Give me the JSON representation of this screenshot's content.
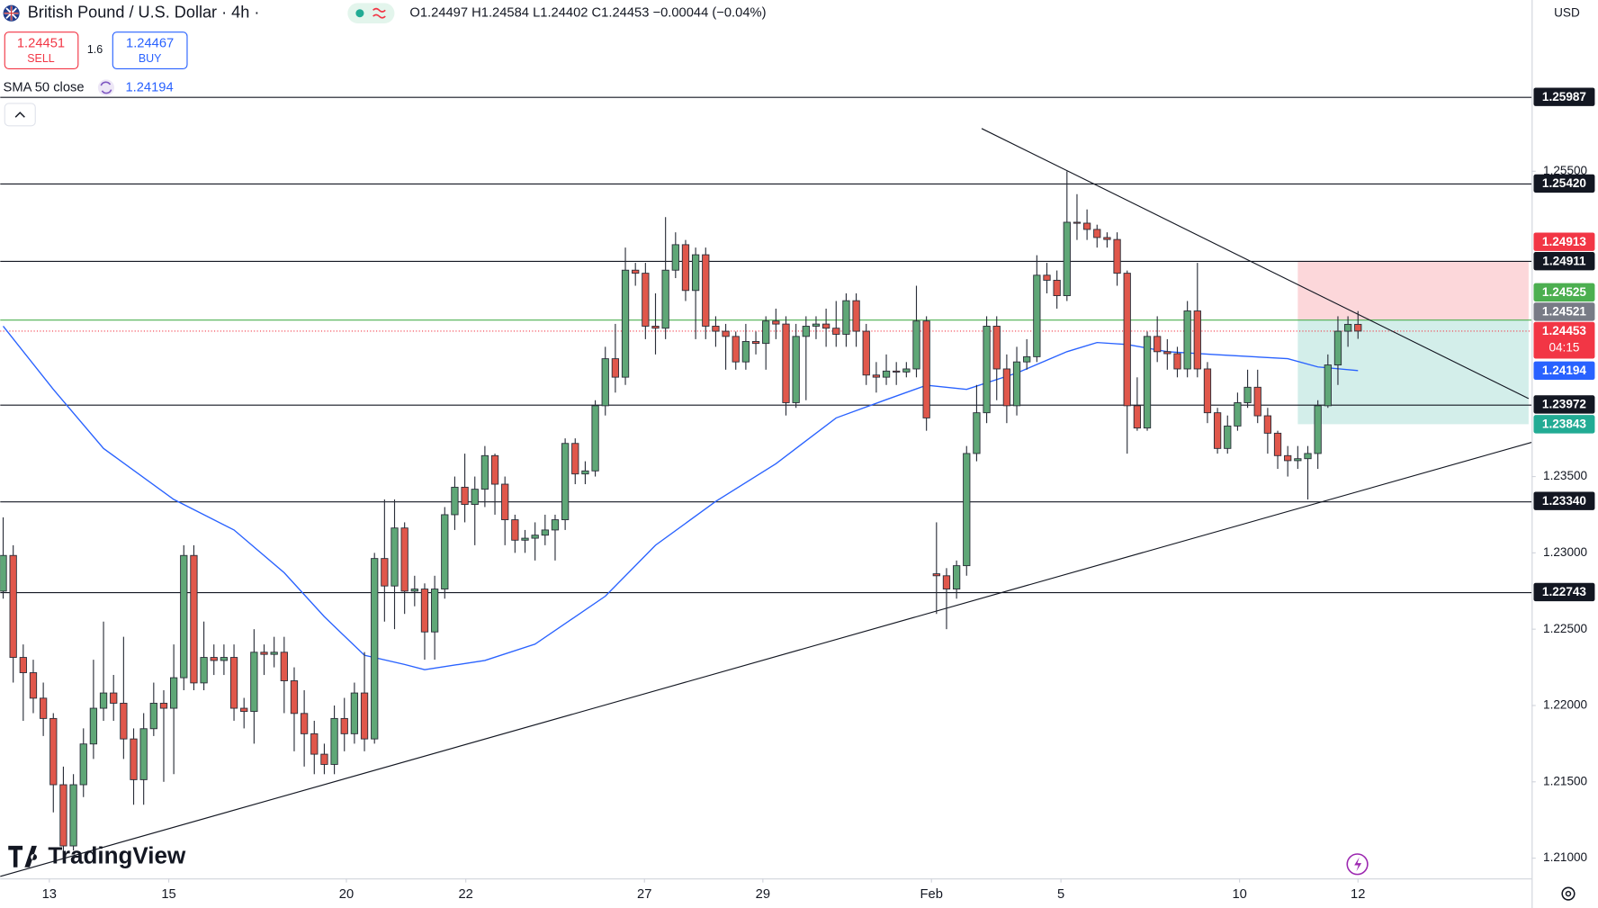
{
  "chart_data": {
    "type": "candlestick",
    "title": "British Pound / U.S. Dollar · 4h ·",
    "ohlc_text": "O1.24497 H1.24584 L1.24402 C1.24453 −0.00044 (−0.04%)",
    "currency": "USD",
    "logo": "TradingView",
    "countdown": "04:15",
    "trade": {
      "sell_price": 1.24451,
      "sell": "SELL",
      "spread": 1.6,
      "buy_price": 1.24467,
      "buy": "BUY"
    },
    "up_color": "#5fa777",
    "down_color": "#e0574b",
    "open": [
      1.22749,
      1.22983,
      1.22315,
      1.22215,
      1.22048,
      1.21915,
      1.21481,
      1.2108,
      1.21481,
      1.21748,
      1.21982,
      1.22082,
      1.22015,
      1.21781,
      1.21514,
      1.21848,
      1.22015,
      1.21982,
      1.22182,
      1.22983,
      1.22148,
      1.22315,
      1.22295,
      1.22315,
      1.21982,
      1.21961,
      1.22349,
      1.22335,
      1.22349,
      1.22162,
      1.21948,
      1.21815,
      1.21681,
      1.21614,
      1.21915,
      1.21815,
      1.22082,
      1.21781,
      1.22963,
      1.22783,
      1.23163,
      1.22749,
      1.22763,
      1.22482,
      1.22763,
      1.2325,
      1.2343,
      1.23317,
      1.23417,
      1.23637,
      1.2345,
      1.23217,
      1.23083,
      1.23096,
      1.23116,
      1.2315,
      1.23217,
      1.23717,
      1.23517,
      1.23537,
      1.23964,
      1.24272,
      1.24151,
      1.24852,
      1.24832,
      1.24485,
      1.24472,
      1.24852,
      1.25019,
      1.24719,
      1.24953,
      1.24485,
      1.24452,
      1.24418,
      1.24251,
      1.24385,
      1.24372,
      1.24519,
      1.24499,
      1.23984,
      1.24418,
      1.24485,
      1.24499,
      1.24472,
      1.24432,
      1.24652,
      1.24452,
      1.24165,
      1.24151,
      1.24191,
      1.24185,
      1.24205,
      1.24519,
      1.22863,
      1.2285,
      1.22763,
      1.22916,
      1.23651,
      1.23918,
      1.24485,
      1.24205,
      1.23964,
      1.24251,
      1.24285,
      1.24819,
      1.24786,
      1.24685,
      1.25166,
      1.2516,
      1.25119,
      1.25066,
      1.25053,
      1.24832,
      1.23964,
      1.23818,
      1.24418,
      1.24318,
      1.24305,
      1.24205,
      1.24585,
      1.24205,
      1.23918,
      1.23684,
      1.23831,
      1.23984,
      1.24085,
      1.23898,
      1.23784,
      1.23637,
      1.23604,
      1.23617,
      1.23651,
      1.23964,
      1.24231,
      1.24452,
      1.24497
    ],
    "high": [
      1.23233,
      1.2305,
      1.224,
      1.223,
      1.2215,
      1.2195,
      1.216,
      1.2155,
      1.2185,
      1.223,
      1.2255,
      1.222,
      1.2245,
      1.2185,
      1.2195,
      1.2215,
      1.221,
      1.224,
      1.2305,
      1.2305,
      1.2255,
      1.224,
      1.224,
      1.224,
      1.2205,
      1.225,
      1.224,
      1.2245,
      1.2245,
      1.2225,
      1.221,
      1.219,
      1.2175,
      1.22,
      1.2205,
      1.2215,
      1.2235,
      1.23,
      1.2335,
      1.2335,
      1.232,
      1.2285,
      1.228,
      1.2285,
      1.233,
      1.235,
      1.2365,
      1.235,
      1.237,
      1.2365,
      1.235,
      1.2325,
      1.2315,
      1.232,
      1.2325,
      1.2325,
      1.2375,
      1.2375,
      1.236,
      1.24,
      1.2435,
      1.245,
      1.25,
      1.249,
      1.249,
      1.247,
      1.252,
      1.251,
      1.2505,
      1.25,
      1.25,
      1.2455,
      1.245,
      1.2445,
      1.245,
      1.2445,
      1.2455,
      1.246,
      1.2455,
      1.245,
      1.2455,
      1.2455,
      1.246,
      1.2465,
      1.247,
      1.247,
      1.245,
      1.2425,
      1.243,
      1.2425,
      1.2425,
      1.2475,
      1.2455,
      1.232,
      1.229,
      1.2295,
      1.237,
      1.241,
      1.2455,
      1.2455,
      1.243,
      1.2435,
      1.244,
      1.2495,
      1.249,
      1.2485,
      1.255,
      1.2535,
      1.2525,
      1.2515,
      1.251,
      1.251,
      1.2485,
      1.2415,
      1.2445,
      1.2455,
      1.244,
      1.2435,
      1.2465,
      1.249,
      1.2425,
      1.2395,
      1.239,
      1.2405,
      1.242,
      1.242,
      1.2395,
      1.238,
      1.237,
      1.237,
      1.237,
      1.24,
      1.243,
      1.2455,
      1.2455,
      1.24584
    ],
    "low": [
      1.227,
      1.2215,
      1.219,
      1.2195,
      1.218,
      1.213,
      1.21,
      1.2105,
      1.214,
      1.2165,
      1.219,
      1.219,
      1.2165,
      1.2135,
      1.2135,
      1.218,
      1.215,
      1.2155,
      1.221,
      1.221,
      1.221,
      1.222,
      1.222,
      1.219,
      1.2185,
      1.2175,
      1.222,
      1.2225,
      1.2195,
      1.217,
      1.216,
      1.2155,
      1.2155,
      1.2155,
      1.217,
      1.2175,
      1.217,
      1.2175,
      1.2255,
      1.225,
      1.226,
      1.2265,
      1.223,
      1.223,
      1.227,
      1.2315,
      1.232,
      1.2305,
      1.233,
      1.2325,
      1.2305,
      1.23,
      1.23,
      1.2295,
      1.2305,
      1.2295,
      1.2315,
      1.2345,
      1.2345,
      1.235,
      1.239,
      1.2405,
      1.241,
      1.2475,
      1.244,
      1.243,
      1.244,
      1.248,
      1.2465,
      1.244,
      1.244,
      1.2435,
      1.242,
      1.242,
      1.242,
      1.243,
      1.242,
      1.244,
      1.239,
      1.2395,
      1.24,
      1.244,
      1.2435,
      1.2435,
      1.2435,
      1.2435,
      1.241,
      1.2405,
      1.241,
      1.241,
      1.2415,
      1.2415,
      1.238,
      1.226,
      1.225,
      1.227,
      1.2285,
      1.236,
      1.2385,
      1.24,
      1.2385,
      1.239,
      1.242,
      1.2425,
      1.247,
      1.246,
      1.2465,
      1.2505,
      1.2505,
      1.25,
      1.25,
      1.2475,
      1.2365,
      1.238,
      1.238,
      1.2425,
      1.242,
      1.2415,
      1.2415,
      1.2415,
      1.2385,
      1.2365,
      1.2365,
      1.238,
      1.2395,
      1.2385,
      1.2365,
      1.2355,
      1.235,
      1.2355,
      1.2335,
      1.2355,
      1.2395,
      1.241,
      1.2435,
      1.24402
    ],
    "close": [
      1.22983,
      1.22315,
      1.22215,
      1.22048,
      1.21915,
      1.21481,
      1.2108,
      1.21481,
      1.21748,
      1.21982,
      1.22082,
      1.22015,
      1.21781,
      1.21514,
      1.21848,
      1.22015,
      1.21982,
      1.22182,
      1.22983,
      1.22148,
      1.22315,
      1.22295,
      1.22315,
      1.21982,
      1.21961,
      1.22349,
      1.22335,
      1.22349,
      1.22162,
      1.21948,
      1.21815,
      1.21681,
      1.21614,
      1.21915,
      1.21815,
      1.22082,
      1.21781,
      1.22963,
      1.22783,
      1.23163,
      1.22749,
      1.22763,
      1.22482,
      1.22763,
      1.2325,
      1.2343,
      1.23317,
      1.23417,
      1.23637,
      1.2345,
      1.23217,
      1.23083,
      1.23096,
      1.23116,
      1.2315,
      1.23217,
      1.23717,
      1.23517,
      1.23537,
      1.23964,
      1.24272,
      1.24151,
      1.24852,
      1.24832,
      1.24485,
      1.24472,
      1.24852,
      1.25019,
      1.24719,
      1.24953,
      1.24485,
      1.24452,
      1.24418,
      1.24251,
      1.24385,
      1.24372,
      1.24519,
      1.24499,
      1.23984,
      1.24418,
      1.24485,
      1.24499,
      1.24472,
      1.24432,
      1.24652,
      1.24452,
      1.24165,
      1.24151,
      1.24191,
      1.24185,
      1.24205,
      1.24519,
      1.23884,
      1.2285,
      1.22763,
      1.22916,
      1.23651,
      1.23918,
      1.24485,
      1.24205,
      1.23964,
      1.24251,
      1.24285,
      1.24819,
      1.24786,
      1.24685,
      1.25166,
      1.2516,
      1.25119,
      1.25066,
      1.25053,
      1.24832,
      1.23964,
      1.23818,
      1.24418,
      1.24318,
      1.24305,
      1.24205,
      1.24585,
      1.24205,
      1.23918,
      1.23684,
      1.23831,
      1.23984,
      1.24085,
      1.23898,
      1.23784,
      1.23637,
      1.23604,
      1.23617,
      1.23651,
      1.23964,
      1.24231,
      1.24452,
      1.24497,
      1.24453
    ],
    "sma": {
      "name": "SMA 50 close",
      "color": "#2962ff",
      "x": [
        0,
        5,
        10,
        17,
        23,
        28,
        32,
        36,
        40,
        42,
        48,
        53,
        60,
        65,
        71,
        77,
        83,
        88,
        92,
        96,
        101,
        106,
        109,
        112,
        116,
        121,
        128,
        131,
        135
      ],
      "values": [
        1.24485,
        1.24071,
        1.23684,
        1.2335,
        1.2315,
        1.2287,
        1.22582,
        1.22329,
        1.22269,
        1.22235,
        1.22295,
        1.22402,
        1.22716,
        1.2305,
        1.23337,
        1.23584,
        1.23884,
        1.24004,
        1.24098,
        1.24071,
        1.24178,
        1.24318,
        1.24378,
        1.24365,
        1.24318,
        1.24298,
        1.24272,
        1.24218,
        1.24194
      ]
    },
    "xlim": [
      -0.3,
      152.3
    ],
    "ylim": [
      1.20867,
      1.26622
    ],
    "xticks": [
      {
        "value": 4.6,
        "label": "13"
      },
      {
        "value": 16.5,
        "label": "15"
      },
      {
        "value": 34.2,
        "label": "20"
      },
      {
        "value": 46.1,
        "label": "22"
      },
      {
        "value": 63.9,
        "label": "27"
      },
      {
        "value": 75.7,
        "label": "29"
      },
      {
        "value": 92.5,
        "label": "Feb"
      },
      {
        "value": 105.4,
        "label": "5"
      },
      {
        "value": 123.2,
        "label": "10"
      },
      {
        "value": 135,
        "label": "12"
      }
    ],
    "yticks": [
      {
        "value": 1.255,
        "label": "1.25500"
      },
      {
        "value": 1.235,
        "label": "1.23500"
      },
      {
        "value": 1.23,
        "label": "1.23000"
      },
      {
        "value": 1.225,
        "label": "1.22500"
      },
      {
        "value": 1.22,
        "label": "1.22000"
      },
      {
        "value": 1.215,
        "label": "1.21500"
      },
      {
        "value": 1.21,
        "label": "1.21000"
      }
    ],
    "levels": [
      1.25987,
      {
        "value": 1.2542,
        "label": "1.25420"
      },
      1.24911,
      1.23972,
      {
        "value": 1.2334,
        "label": "1.23340"
      },
      1.22743
    ],
    "level_color": "#131722",
    "position": {
      "x": [
        129,
        152
      ],
      "stop": 1.24913,
      "entry": 1.24525,
      "target": 1.23843,
      "stop_color": "#f23645",
      "entry_color": "#4caf50",
      "target_color": "#22ab94"
    },
    "markers": [
      {
        "value": 1.24521,
        "color": "#787b86"
      }
    ],
    "current_color": "#f23645",
    "trendlines": [
      {
        "x": [
          97.5,
          152
        ],
        "y": [
          1.2578,
          1.24011
        ]
      },
      {
        "x": [
          -0.3,
          152.3
        ],
        "y": [
          1.2088,
          1.23724
        ]
      }
    ]
  }
}
